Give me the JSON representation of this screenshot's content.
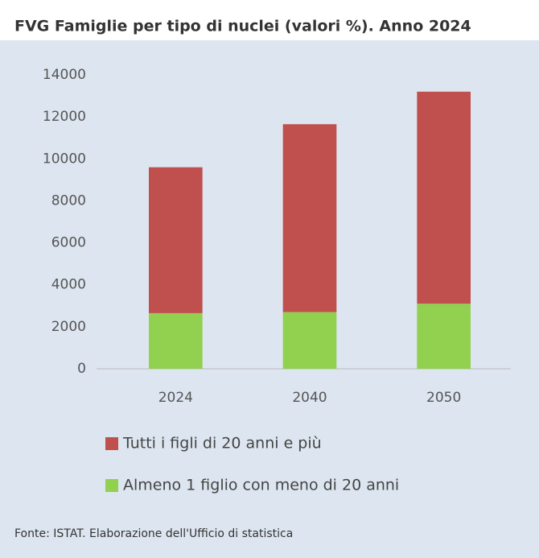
{
  "chart_data": {
    "type": "stacked_bar",
    "title": "FVG Famiglie per tipo di nuclei (valori %). Anno 2024",
    "categories": [
      "2024",
      "2040",
      "2050"
    ],
    "series": [
      {
        "name": "Tutti i figli di 20 anni e più",
        "color": "#c0504d",
        "values": [
          6950,
          8950,
          10100
        ]
      },
      {
        "name": "Almeno 1 figlio con meno di 20 anni",
        "color": "#92d050",
        "values": [
          2650,
          2700,
          3100
        ]
      }
    ],
    "ylim": [
      0,
      14000
    ],
    "yticks": [
      0,
      2000,
      4000,
      6000,
      8000,
      10000,
      12000,
      14000
    ],
    "source": "Fonte: ISTAT. Elaborazione dell'Ufficio di statistica"
  }
}
